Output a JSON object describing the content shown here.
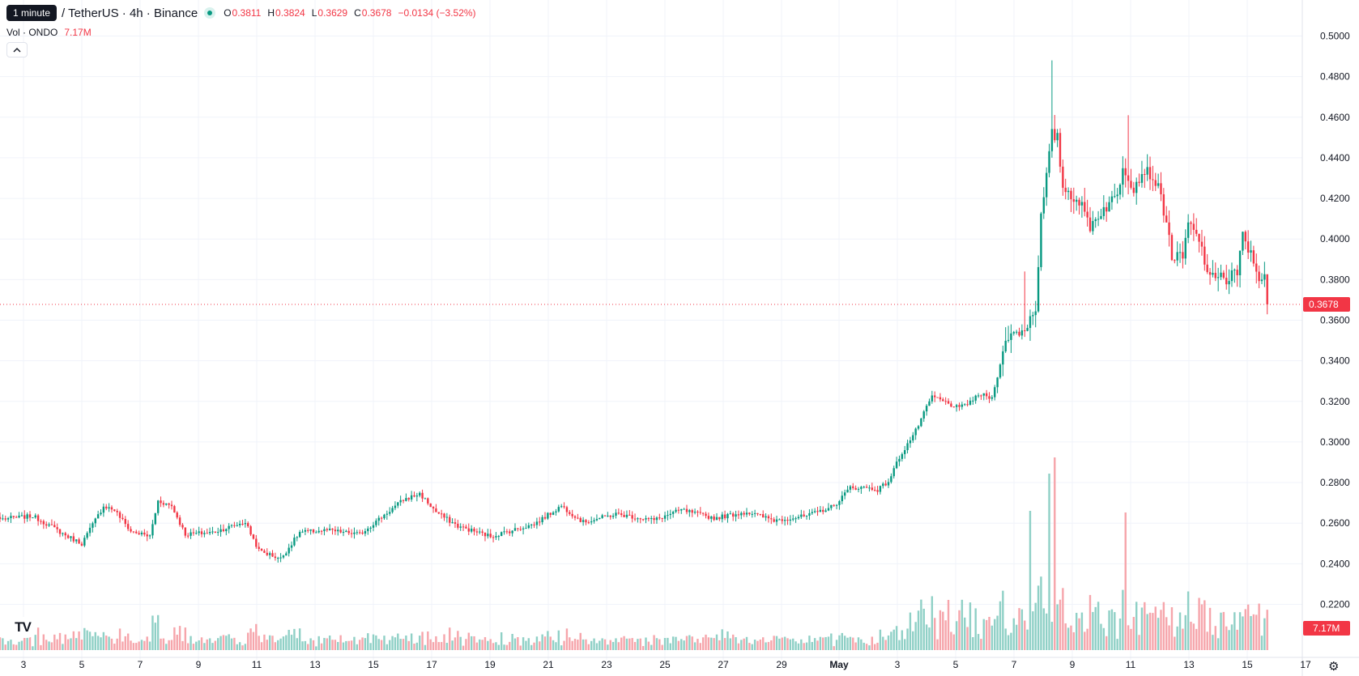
{
  "header": {
    "tooltip": "1 minute",
    "symbol": "/ TetherUS · 4h · Binance",
    "ohlc": {
      "open_key": "O",
      "open": "0.3811",
      "high_key": "H",
      "high": "0.3824",
      "low_key": "L",
      "low": "0.3629",
      "close_key": "C",
      "close": "0.3678",
      "change": "−0.0134 (−3.52%)"
    },
    "volume_label": "Vol · ONDO",
    "volume_value": "7.17M",
    "collapse_icon": "chevron-up-icon"
  },
  "colors": {
    "up": "#089981",
    "down": "#f23645",
    "up_volume": "#8fd0c6",
    "down_volume": "#f6a5ab",
    "grid": "#f0f3fa"
  },
  "icons": {
    "logo": "tradingview-logo-icon",
    "settings": "gear-icon"
  },
  "chart_data": {
    "type": "candlestick",
    "title": "/ TetherUS · 4h · Binance",
    "timeframe": "4h",
    "y_axis": {
      "ticks": [
        "0.5000",
        "0.4800",
        "0.4600",
        "0.4400",
        "0.4200",
        "0.4000",
        "0.3800",
        "0.3600",
        "0.3400",
        "0.3200",
        "0.3000",
        "0.2800",
        "0.2600",
        "0.2400",
        "0.2200"
      ],
      "range": [
        0.2185,
        0.503
      ]
    },
    "x_axis": {
      "tick_labels": [
        "3",
        "5",
        "7",
        "9",
        "11",
        "13",
        "15",
        "17",
        "19",
        "21",
        "23",
        "25",
        "27",
        "29",
        "May",
        "3",
        "5",
        "7",
        "9",
        "11",
        "13",
        "15",
        "17"
      ]
    },
    "last_price": "0.3678",
    "last_volume": "7.17M",
    "ohlc_anchors": [
      {
        "t": 0,
        "c": 0.262
      },
      {
        "t": 12,
        "c": 0.2635
      },
      {
        "t": 18,
        "c": 0.259
      },
      {
        "t": 24,
        "c": 0.254
      },
      {
        "t": 30,
        "c": 0.25
      },
      {
        "t": 38,
        "c": 0.2685
      },
      {
        "t": 42,
        "c": 0.2665
      },
      {
        "t": 48,
        "c": 0.256
      },
      {
        "t": 55,
        "c": 0.2535
      },
      {
        "t": 58,
        "c": 0.271
      },
      {
        "t": 63,
        "c": 0.2685
      },
      {
        "t": 68,
        "c": 0.2545
      },
      {
        "t": 78,
        "c": 0.2555
      },
      {
        "t": 90,
        "c": 0.2605
      },
      {
        "t": 95,
        "c": 0.2465
      },
      {
        "t": 103,
        "c": 0.2425
      },
      {
        "t": 110,
        "c": 0.2555
      },
      {
        "t": 120,
        "c": 0.2565
      },
      {
        "t": 132,
        "c": 0.2545
      },
      {
        "t": 148,
        "c": 0.2715
      },
      {
        "t": 154,
        "c": 0.2745
      },
      {
        "t": 160,
        "c": 0.2655
      },
      {
        "t": 168,
        "c": 0.2585
      },
      {
        "t": 180,
        "c": 0.2535
      },
      {
        "t": 196,
        "c": 0.2595
      },
      {
        "t": 206,
        "c": 0.2685
      },
      {
        "t": 214,
        "c": 0.2605
      },
      {
        "t": 226,
        "c": 0.2645
      },
      {
        "t": 240,
        "c": 0.2615
      },
      {
        "t": 250,
        "c": 0.2665
      },
      {
        "t": 262,
        "c": 0.2625
      },
      {
        "t": 274,
        "c": 0.2655
      },
      {
        "t": 284,
        "c": 0.2615
      },
      {
        "t": 296,
        "c": 0.2635
      },
      {
        "t": 306,
        "c": 0.2685
      },
      {
        "t": 312,
        "c": 0.2775
      },
      {
        "t": 318,
        "c": 0.2775
      },
      {
        "t": 322,
        "c": 0.2765
      },
      {
        "t": 326,
        "c": 0.2805
      },
      {
        "t": 330,
        "c": 0.2925
      },
      {
        "t": 336,
        "c": 0.3055
      },
      {
        "t": 342,
        "c": 0.3225
      },
      {
        "t": 352,
        "c": 0.3165
      },
      {
        "t": 360,
        "c": 0.3235
      },
      {
        "t": 364,
        "c": 0.3215
      },
      {
        "t": 366,
        "c": 0.3345
      },
      {
        "t": 370,
        "c": 0.3525
      },
      {
        "t": 376,
        "c": 0.3555
      },
      {
        "t": 380,
        "c": 0.3665
      },
      {
        "t": 382,
        "c": 0.4105
      },
      {
        "t": 384,
        "c": 0.4305
      },
      {
        "t": 386,
        "c": 0.4515
      },
      {
        "t": 388,
        "c": 0.4495
      },
      {
        "t": 390,
        "c": 0.4255
      },
      {
        "t": 396,
        "c": 0.4185
      },
      {
        "t": 400,
        "c": 0.4065
      },
      {
        "t": 404,
        "c": 0.4135
      },
      {
        "t": 410,
        "c": 0.4215
      },
      {
        "t": 412,
        "c": 0.4365
      },
      {
        "t": 416,
        "c": 0.4255
      },
      {
        "t": 420,
        "c": 0.4345
      },
      {
        "t": 424,
        "c": 0.4285
      },
      {
        "t": 426,
        "c": 0.4205
      },
      {
        "t": 428,
        "c": 0.4085
      },
      {
        "t": 430,
        "c": 0.3915
      },
      {
        "t": 434,
        "c": 0.3905
      },
      {
        "t": 436,
        "c": 0.4075
      },
      {
        "t": 440,
        "c": 0.3995
      },
      {
        "t": 444,
        "c": 0.3795
      },
      {
        "t": 448,
        "c": 0.3845
      },
      {
        "t": 450,
        "c": 0.3765
      },
      {
        "t": 452,
        "c": 0.3835
      },
      {
        "t": 454,
        "c": 0.3815
      },
      {
        "t": 456,
        "c": 0.4025
      },
      {
        "t": 458,
        "c": 0.3955
      },
      {
        "t": 460,
        "c": 0.3885
      },
      {
        "t": 462,
        "c": 0.3815
      },
      {
        "t": 464,
        "c": 0.3811
      },
      {
        "t": 465,
        "c": 0.3678
      }
    ]
  }
}
